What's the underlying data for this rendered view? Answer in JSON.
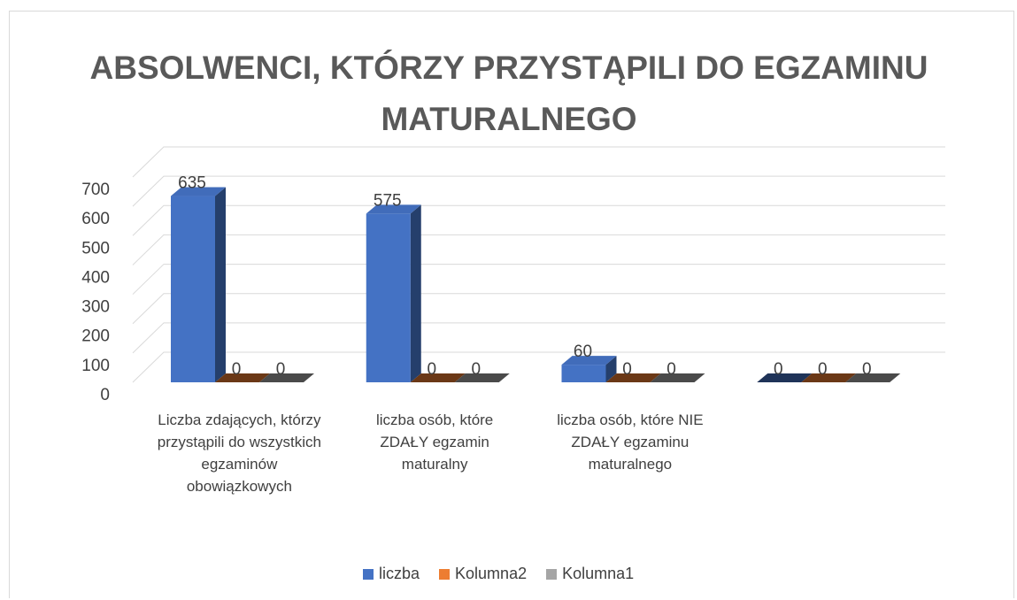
{
  "chart_data": {
    "type": "bar3d",
    "title": "ABSOLWENCI, KTÓRZY PRZYSTĄPILI DO EGZAMINU MATURALNEGO",
    "categories": [
      "Liczba zdających, którzy przystąpili do wszystkich egzaminów obowiązkowych",
      "liczba osób, które ZDAŁY egzamin maturalny",
      "liczba osób, które NIE ZDAŁY egzaminu maturalnego",
      null
    ],
    "series": [
      {
        "name": "liczba",
        "color": "#4472c4",
        "values": [
          635,
          575,
          60,
          0
        ]
      },
      {
        "name": "Kolumna2",
        "color": "#ed7d31",
        "values": [
          0,
          0,
          0,
          0
        ]
      },
      {
        "name": "Kolumna1",
        "color": "#a5a5a5",
        "values": [
          0,
          0,
          0,
          0
        ]
      }
    ],
    "ylim": [
      0,
      700
    ],
    "yticks": [
      0,
      100,
      200,
      300,
      400,
      500,
      600,
      700
    ],
    "grid": true,
    "data_labels": true,
    "legend": "bottom"
  }
}
